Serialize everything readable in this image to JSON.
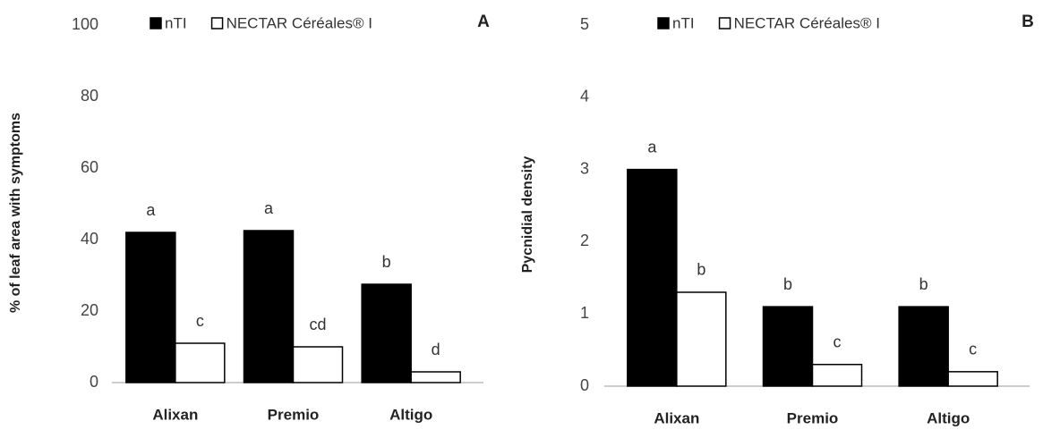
{
  "chart_data": [
    {
      "type": "bar",
      "panel_label": "A",
      "y_label": "% of leaf area with symptoms",
      "categories": [
        "Alixan",
        "Premio",
        "Altigo"
      ],
      "series": [
        {
          "name": "nTI",
          "color": "#000000",
          "values": [
            42,
            42.5,
            27.5
          ],
          "letters": [
            "a",
            "a",
            "b"
          ]
        },
        {
          "name": "NECTAR Céréales® I",
          "color": "#ffffff",
          "values": [
            11,
            10,
            3
          ],
          "letters": [
            "c",
            "cd",
            "d"
          ]
        }
      ],
      "ylim": [
        0,
        100
      ],
      "yticks": [
        0,
        20,
        40,
        60,
        80,
        100
      ],
      "grid": false,
      "legend": "top"
    },
    {
      "type": "bar",
      "panel_label": "B",
      "y_label": "Pycnidial density",
      "categories": [
        "Alixan",
        "Premio",
        "Altigo"
      ],
      "series": [
        {
          "name": "nTI",
          "color": "#000000",
          "values": [
            3,
            1.1,
            1.1
          ],
          "letters": [
            "a",
            "b",
            "b"
          ]
        },
        {
          "name": "NECTAR Céréales® I",
          "color": "#ffffff",
          "values": [
            1.3,
            0.3,
            0.2
          ],
          "letters": [
            "b",
            "c",
            "c"
          ]
        }
      ],
      "ylim": [
        0,
        5
      ],
      "yticks": [
        0,
        1,
        2,
        3,
        4,
        5
      ],
      "grid": false,
      "legend": "top"
    }
  ]
}
